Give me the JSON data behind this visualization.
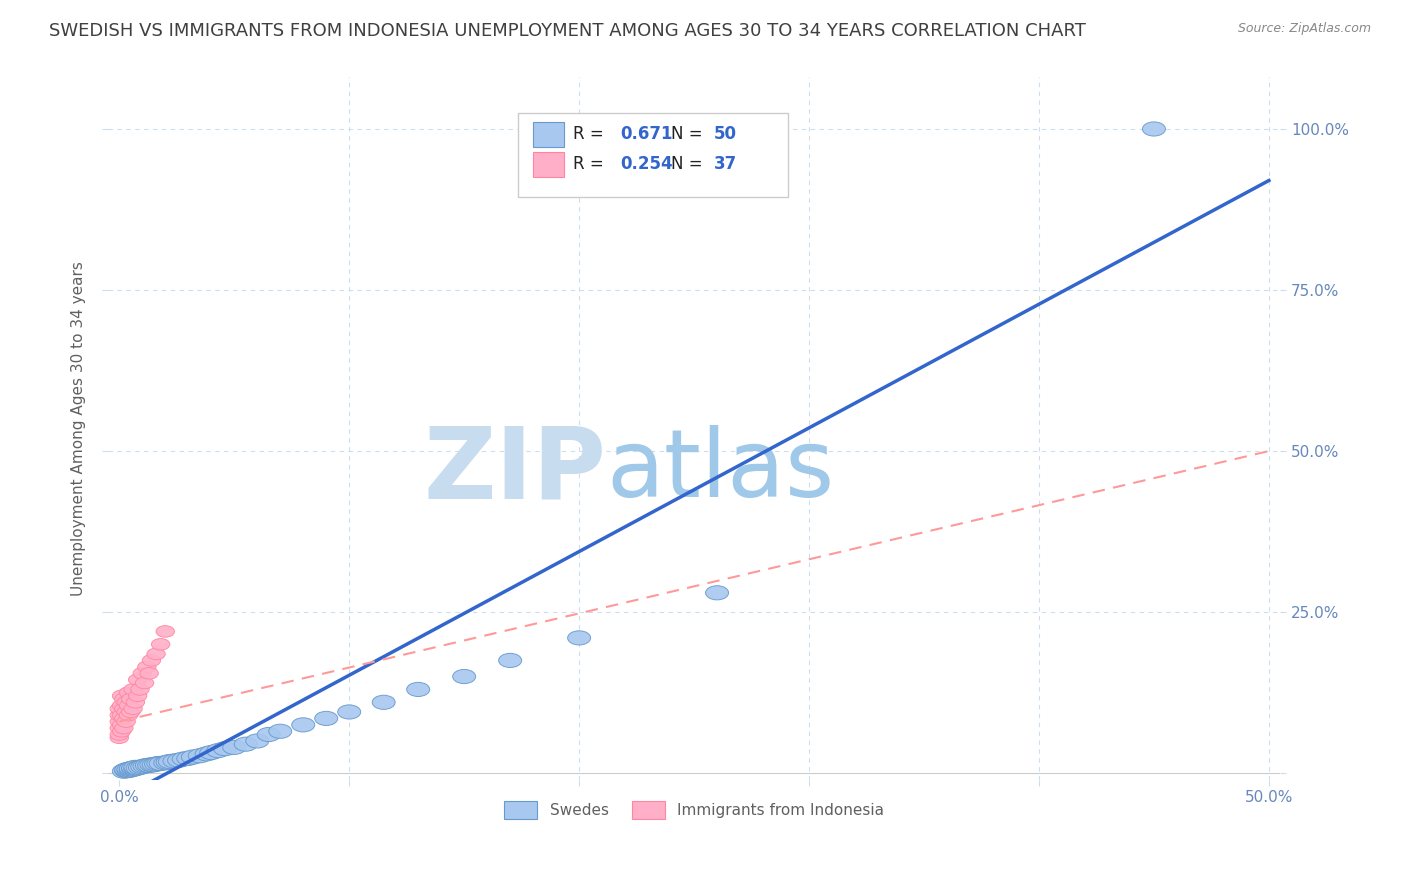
{
  "title": "SWEDISH VS IMMIGRANTS FROM INDONESIA UNEMPLOYMENT AMONG AGES 30 TO 34 YEARS CORRELATION CHART",
  "source": "Source: ZipAtlas.com",
  "ylabel": "Unemployment Among Ages 30 to 34 years",
  "xlim": [
    -0.005,
    0.505
  ],
  "ylim": [
    -0.01,
    1.08
  ],
  "xticks": [
    0.0,
    0.1,
    0.2,
    0.3,
    0.4,
    0.5
  ],
  "xtick_labels": [
    "0.0%",
    "",
    "",
    "",
    "",
    "50.0%"
  ],
  "yticks": [
    0.0,
    0.25,
    0.5,
    0.75,
    1.0
  ],
  "ytick_labels_right": [
    "",
    "25.0%",
    "50.0%",
    "75.0%",
    "100.0%"
  ],
  "swedes_R": 0.671,
  "swedes_N": 50,
  "indonesia_R": 0.254,
  "indonesia_N": 37,
  "swedes_color": "#A8C8F0",
  "swedes_edge_color": "#6699CC",
  "indonesia_color": "#FFB0C8",
  "indonesia_edge_color": "#FF85A0",
  "blue_line_color": "#3366CC",
  "pink_line_color": "#FF9999",
  "background_color": "#FFFFFF",
  "title_color": "#404040",
  "title_fontsize": 13,
  "axis_label_color": "#606060",
  "tick_color": "#6688BB",
  "grid_color": "#CCDDEE",
  "watermark_zip_color": "#C8DCF0",
  "watermark_atlas_color": "#A0C8E8",
  "swedes_x": [
    0.002,
    0.003,
    0.003,
    0.004,
    0.004,
    0.005,
    0.005,
    0.006,
    0.006,
    0.007,
    0.007,
    0.008,
    0.009,
    0.01,
    0.011,
    0.012,
    0.013,
    0.014,
    0.015,
    0.016,
    0.017,
    0.018,
    0.02,
    0.021,
    0.022,
    0.024,
    0.026,
    0.028,
    0.03,
    0.032,
    0.035,
    0.038,
    0.04,
    0.043,
    0.046,
    0.05,
    0.055,
    0.06,
    0.065,
    0.07,
    0.08,
    0.09,
    0.1,
    0.115,
    0.13,
    0.15,
    0.17,
    0.2,
    0.26,
    0.45
  ],
  "swedes_y": [
    0.003,
    0.004,
    0.005,
    0.004,
    0.006,
    0.005,
    0.007,
    0.006,
    0.008,
    0.007,
    0.009,
    0.008,
    0.009,
    0.01,
    0.011,
    0.012,
    0.012,
    0.013,
    0.013,
    0.014,
    0.015,
    0.015,
    0.016,
    0.017,
    0.018,
    0.019,
    0.02,
    0.022,
    0.023,
    0.025,
    0.027,
    0.03,
    0.032,
    0.035,
    0.038,
    0.04,
    0.045,
    0.05,
    0.06,
    0.065,
    0.075,
    0.085,
    0.095,
    0.11,
    0.13,
    0.15,
    0.175,
    0.21,
    0.28,
    1.0
  ],
  "indonesia_x": [
    0.0,
    0.0,
    0.0,
    0.0,
    0.0,
    0.0,
    0.001,
    0.001,
    0.001,
    0.001,
    0.001,
    0.002,
    0.002,
    0.002,
    0.002,
    0.003,
    0.003,
    0.003,
    0.004,
    0.004,
    0.004,
    0.005,
    0.005,
    0.006,
    0.006,
    0.007,
    0.008,
    0.008,
    0.009,
    0.01,
    0.011,
    0.012,
    0.013,
    0.014,
    0.016,
    0.018,
    0.02
  ],
  "indonesia_y": [
    0.055,
    0.06,
    0.07,
    0.08,
    0.09,
    0.1,
    0.065,
    0.075,
    0.09,
    0.105,
    0.12,
    0.07,
    0.085,
    0.1,
    0.115,
    0.08,
    0.095,
    0.11,
    0.09,
    0.105,
    0.125,
    0.095,
    0.115,
    0.1,
    0.13,
    0.11,
    0.12,
    0.145,
    0.13,
    0.155,
    0.14,
    0.165,
    0.155,
    0.175,
    0.185,
    0.2,
    0.22
  ],
  "blue_line_x": [
    0.0,
    0.5
  ],
  "blue_line_y": [
    -0.04,
    0.92
  ],
  "pink_line_x": [
    0.0,
    0.5
  ],
  "pink_line_y": [
    0.08,
    0.5
  ]
}
